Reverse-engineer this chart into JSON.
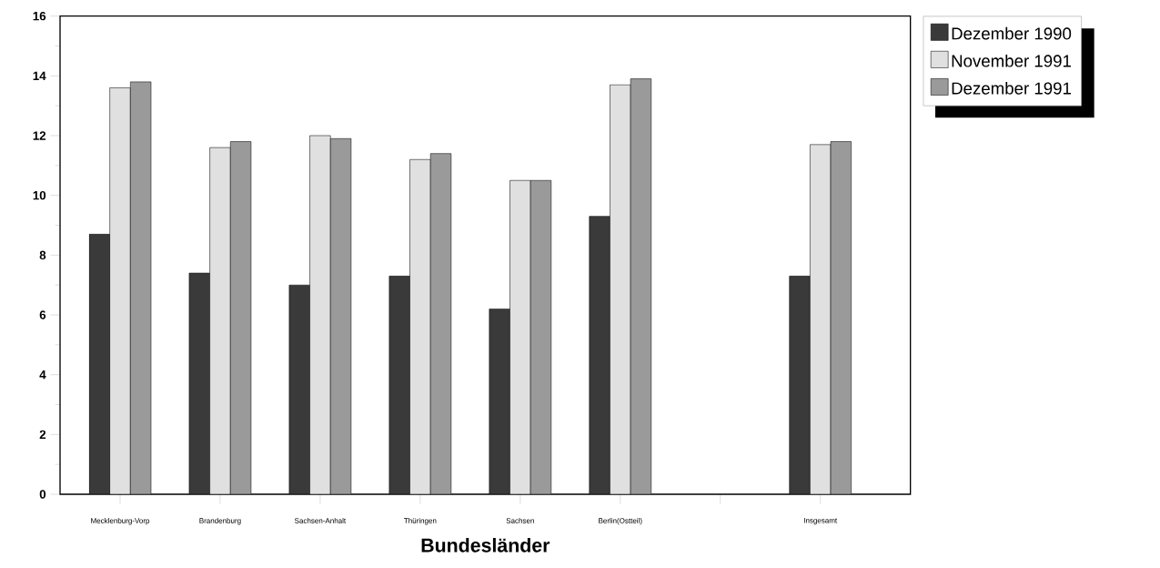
{
  "chart_data": {
    "type": "bar",
    "xlabel": "Bundesländer",
    "categories": [
      "Mecklenburg-Vorp",
      "Brandenburg",
      "Sachsen-Anhalt",
      "Thüringen",
      "Sachsen",
      "Berlin(Ostteil)",
      null,
      "Insgesamt"
    ],
    "series": [
      {
        "name": "Dezember 1990",
        "color": "#3a3a3a",
        "values": [
          8.7,
          7.4,
          7.0,
          7.3,
          6.2,
          9.3,
          null,
          7.3
        ]
      },
      {
        "name": "November 1991",
        "color": "#e0e0e0",
        "values": [
          13.6,
          11.6,
          12.0,
          11.2,
          10.5,
          13.7,
          null,
          11.7
        ]
      },
      {
        "name": "Dezember 1991",
        "color": "#9a9a9a",
        "values": [
          13.8,
          11.8,
          11.9,
          11.4,
          10.5,
          13.9,
          null,
          11.8
        ]
      }
    ],
    "ylim": [
      0,
      16
    ],
    "yticks": [
      0,
      2,
      4,
      6,
      8,
      10,
      12,
      14,
      16
    ],
    "grid": false,
    "legend": "top right"
  }
}
